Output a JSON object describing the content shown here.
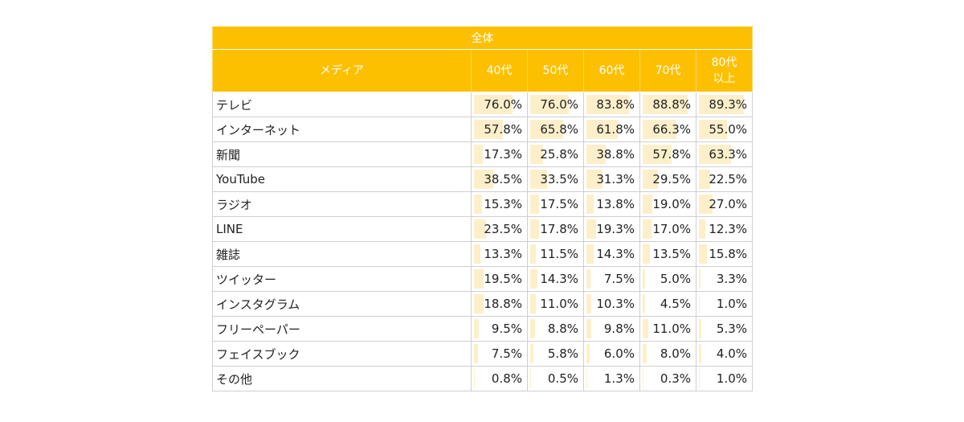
{
  "table_title": "全体",
  "column_headers": {
    "media": "メディア",
    "ages": [
      {
        "line1": "40代",
        "line2": ""
      },
      {
        "line1": "50代",
        "line2": ""
      },
      {
        "line1": "60代",
        "line2": ""
      },
      {
        "line1": "70代",
        "line2": ""
      },
      {
        "line1": "80代",
        "line2": "以上"
      }
    ]
  },
  "colors": {
    "header_bg": "#fdc000",
    "header_text": "#ffffff",
    "bar_fill": "#fdefc9",
    "grid": "#cfcfcf"
  },
  "chart_data": {
    "type": "table",
    "title": "全体",
    "columns": [
      "40代",
      "50代",
      "60代",
      "70代",
      "80代以上"
    ],
    "bar_scale_max": 100,
    "rows": [
      {
        "label": "テレビ",
        "values": [
          76.0,
          76.0,
          83.8,
          88.8,
          89.3
        ],
        "display": [
          "76.0%",
          "76.0%",
          "83.8%",
          "88.8%",
          "89.3%"
        ]
      },
      {
        "label": "インターネット",
        "values": [
          57.8,
          65.8,
          61.8,
          66.3,
          55.0
        ],
        "display": [
          "57.8%",
          "65.8%",
          "61.8%",
          "66.3%",
          "55.0%"
        ]
      },
      {
        "label": "新聞",
        "values": [
          17.3,
          25.8,
          38.8,
          57.8,
          63.3
        ],
        "display": [
          "17.3%",
          "25.8%",
          "38.8%",
          "57.8%",
          "63.3%"
        ]
      },
      {
        "label": "YouTube",
        "values": [
          38.5,
          33.5,
          31.3,
          29.5,
          22.5
        ],
        "display": [
          "38.5%",
          "33.5%",
          "31.3%",
          "29.5%",
          "22.5%"
        ]
      },
      {
        "label": "ラジオ",
        "values": [
          15.3,
          17.5,
          13.8,
          19.0,
          27.0
        ],
        "display": [
          "15.3%",
          "17.5%",
          "13.8%",
          "19.0%",
          "27.0%"
        ]
      },
      {
        "label": "LINE",
        "values": [
          23.5,
          17.8,
          19.3,
          17.0,
          12.3
        ],
        "display": [
          "23.5%",
          "17.8%",
          "19.3%",
          "17.0%",
          "12.3%"
        ]
      },
      {
        "label": "雑誌",
        "values": [
          13.3,
          11.5,
          14.3,
          13.5,
          15.8
        ],
        "display": [
          "13.3%",
          "11.5%",
          "14.3%",
          "13.5%",
          "15.8%"
        ]
      },
      {
        "label": "ツイッター",
        "values": [
          19.5,
          14.3,
          7.5,
          5.0,
          3.3
        ],
        "display": [
          "19.5%",
          "14.3%",
          "7.5%",
          "5.0%",
          "3.3%"
        ]
      },
      {
        "label": "インスタグラム",
        "values": [
          18.8,
          11.0,
          10.3,
          4.5,
          1.0
        ],
        "display": [
          "18.8%",
          "11.0%",
          "10.3%",
          "4.5%",
          "1.0%"
        ]
      },
      {
        "label": "フリーペーパー",
        "values": [
          9.5,
          8.8,
          9.8,
          11.0,
          5.3
        ],
        "display": [
          "9.5%",
          "8.8%",
          "9.8%",
          "11.0%",
          "5.3%"
        ]
      },
      {
        "label": "フェイスブック",
        "values": [
          7.5,
          5.8,
          6.0,
          8.0,
          4.0
        ],
        "display": [
          "7.5%",
          "5.8%",
          "6.0%",
          "8.0%",
          "4.0%"
        ]
      },
      {
        "label": "その他",
        "values": [
          0.8,
          0.5,
          1.3,
          0.3,
          1.0
        ],
        "display": [
          "0.8%",
          "0.5%",
          "1.3%",
          "0.3%",
          "1.0%"
        ]
      }
    ]
  }
}
